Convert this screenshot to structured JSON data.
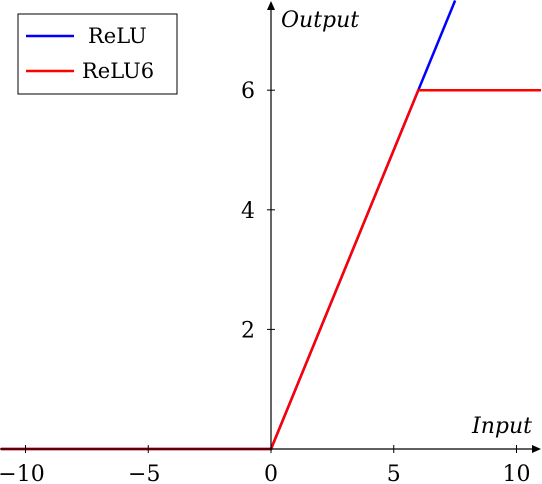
{
  "chart_data": {
    "type": "line",
    "title": "",
    "xlabel": "Input",
    "ylabel": "Output",
    "xlim": [
      -11,
      11
    ],
    "ylim": [
      0,
      7.5
    ],
    "xticks": [
      -10,
      -5,
      0,
      5,
      10
    ],
    "xtick_labels": [
      "−10",
      "−5",
      "0",
      "5",
      "10"
    ],
    "yticks": [
      2,
      4,
      6
    ],
    "ytick_labels": [
      "2",
      "4",
      "6"
    ],
    "grid": false,
    "legend_position": "top-left",
    "series": [
      {
        "name": "ReLU",
        "color": "#0000ff",
        "x": [
          -11,
          0,
          7.5
        ],
        "y": [
          0,
          0,
          7.5
        ]
      },
      {
        "name": "ReLU6",
        "color": "#ff0000",
        "x": [
          -11,
          0,
          6,
          11
        ],
        "y": [
          0,
          0,
          6,
          6
        ]
      }
    ]
  }
}
